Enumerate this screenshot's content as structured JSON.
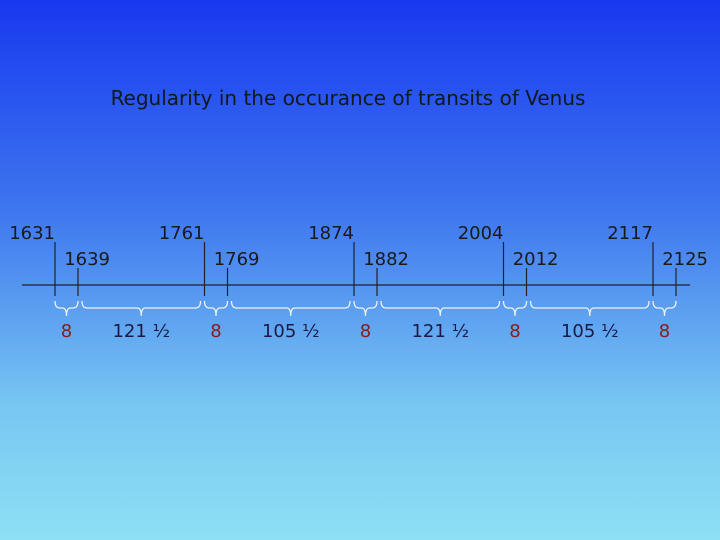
{
  "title": "Regularity in the occurance of transits of Venus",
  "years": [
    "1631",
    "1639",
    "1761",
    "1769",
    "1874",
    "1882",
    "2004",
    "2012",
    "2117",
    "2125"
  ],
  "intervals": [
    "8",
    "121 ½",
    "8",
    "105 ½",
    "8",
    "121 ½",
    "8",
    "105 ½",
    "8"
  ]
}
